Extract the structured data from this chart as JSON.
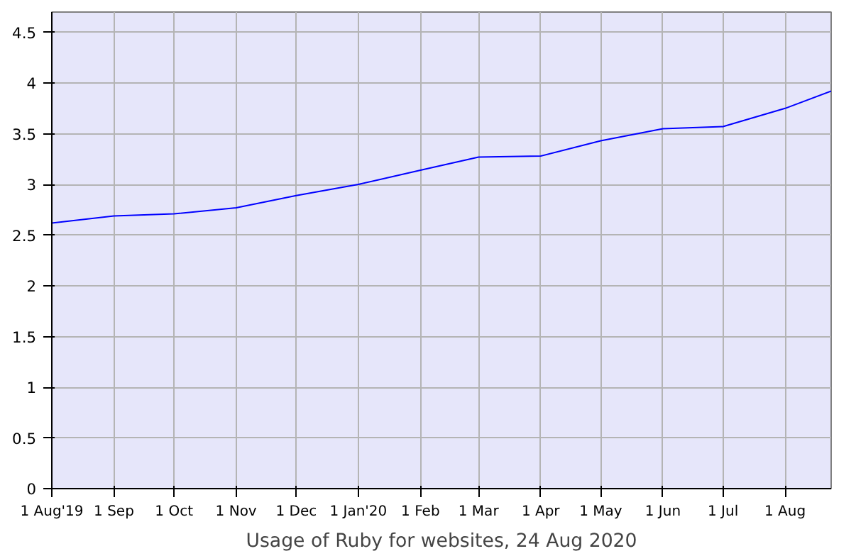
{
  "chart_data": {
    "type": "line",
    "xlabel": "Usage of Ruby for websites, 24 Aug 2020",
    "x": [
      "2019-08-01",
      "2019-09-01",
      "2019-10-01",
      "2019-11-01",
      "2019-12-01",
      "2020-01-01",
      "2020-02-01",
      "2020-03-01",
      "2020-04-01",
      "2020-05-01",
      "2020-06-01",
      "2020-07-01",
      "2020-08-01",
      "2020-08-24"
    ],
    "series": [
      {
        "color": "#0000ff",
        "values": [
          2.62,
          2.69,
          2.71,
          2.77,
          2.89,
          3.0,
          3.14,
          3.27,
          3.28,
          3.43,
          3.55,
          3.57,
          3.75,
          3.92
        ]
      }
    ],
    "xlim": [
      "2019-08-01",
      "2020-08-24"
    ],
    "xticks": [
      {
        "value": "2019-08-01",
        "label": "1 Aug'19"
      },
      {
        "value": "2019-09-01",
        "label": "1 Sep"
      },
      {
        "value": "2019-10-01",
        "label": "1 Oct"
      },
      {
        "value": "2019-11-01",
        "label": "1 Nov"
      },
      {
        "value": "2019-12-01",
        "label": "1 Dec"
      },
      {
        "value": "2020-01-01",
        "label": "1 Jan'20"
      },
      {
        "value": "2020-02-01",
        "label": "1 Feb"
      },
      {
        "value": "2020-03-01",
        "label": "1 Mar"
      },
      {
        "value": "2020-04-01",
        "label": "1 Apr"
      },
      {
        "value": "2020-05-01",
        "label": "1 May"
      },
      {
        "value": "2020-06-01",
        "label": "1 Jun"
      },
      {
        "value": "2020-07-01",
        "label": "1 Jul"
      },
      {
        "value": "2020-08-01",
        "label": "1 Aug"
      }
    ],
    "ylim": [
      0,
      4.7
    ],
    "yticks": [
      0,
      0.5,
      1,
      1.5,
      2,
      2.5,
      3,
      3.5,
      4,
      4.5
    ],
    "grid": true,
    "marker": "none",
    "line_style": "solid"
  }
}
